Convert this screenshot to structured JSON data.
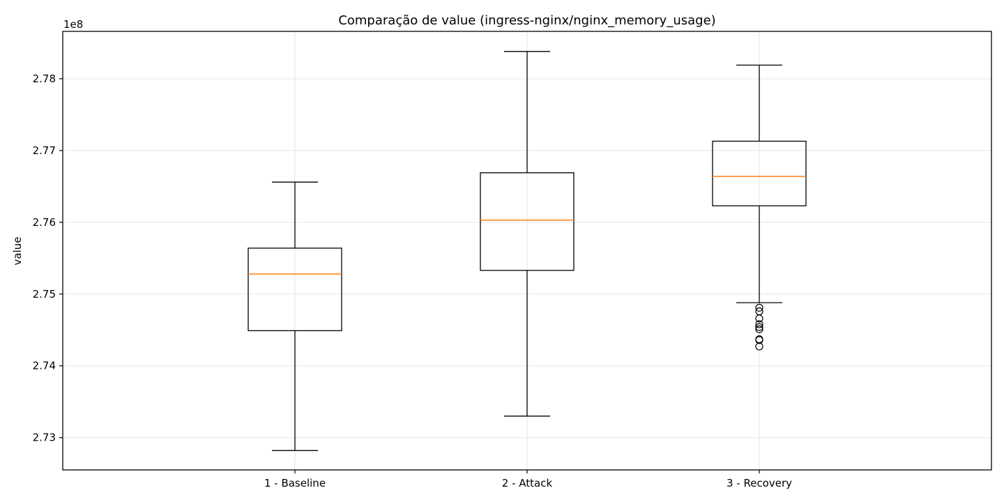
{
  "chart_data": {
    "type": "boxplot",
    "title": "Comparação de value (ingress-nginx/nginx_memory_usage)",
    "xlabel": "",
    "ylabel": "value",
    "y_offset_label": "1e8",
    "y_scale_factor": 100000000,
    "ylim": [
      2.7255,
      2.7866
    ],
    "y_ticks": [
      2.73,
      2.74,
      2.75,
      2.76,
      2.77,
      2.78
    ],
    "y_tick_labels": [
      "2.73",
      "2.74",
      "2.75",
      "2.76",
      "2.77",
      "2.78"
    ],
    "grid": true,
    "categories": [
      "1 - Baseline",
      "2 - Attack",
      "3 - Recovery"
    ],
    "boxes": [
      {
        "category": "1 - Baseline",
        "whisker_low": 2.7282,
        "q1": 2.7449,
        "median": 2.7528,
        "q3": 2.7564,
        "whisker_high": 2.7656,
        "outliers": []
      },
      {
        "category": "2 - Attack",
        "whisker_low": 2.733,
        "q1": 2.7533,
        "median": 2.7603,
        "q3": 2.7669,
        "whisker_high": 2.7838,
        "outliers": []
      },
      {
        "category": "3 - Recovery",
        "whisker_low": 2.7488,
        "q1": 2.7623,
        "median": 2.7664,
        "q3": 2.7713,
        "whisker_high": 2.7819,
        "outliers": [
          2.7481,
          2.7476,
          2.7466,
          2.7458,
          2.7454,
          2.7451,
          2.7437,
          2.7436,
          2.7427
        ]
      }
    ],
    "colors": {
      "box": "#000000",
      "median": "#ff7f0e",
      "grid": "#e6e6e6",
      "outlier": "#000000"
    }
  }
}
